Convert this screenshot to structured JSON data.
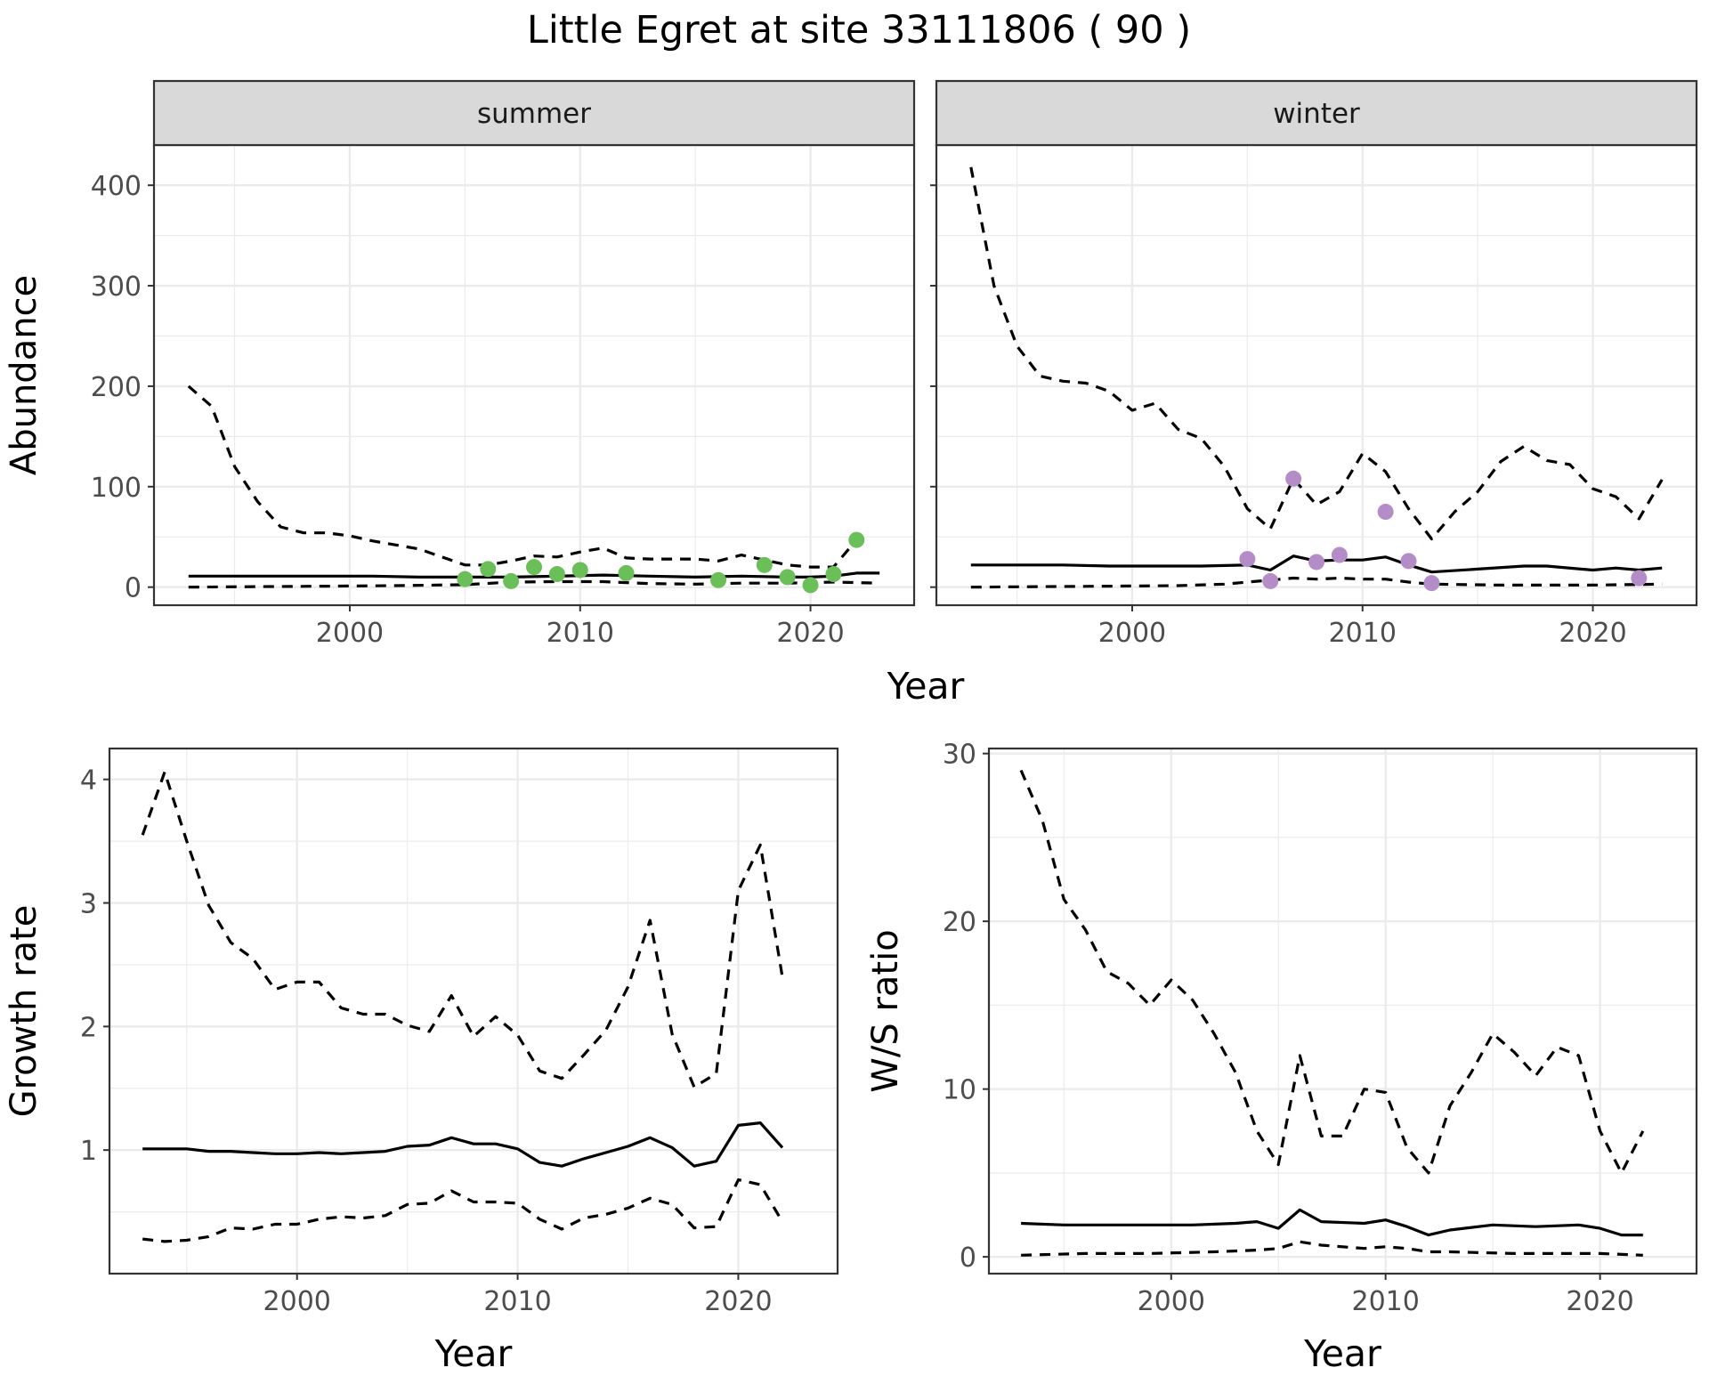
{
  "figure": {
    "title": "Little Egret at site 33111806 ( 90 )"
  },
  "colors": {
    "summer_points": "#6bbf59",
    "winter_points": "#b48cc8",
    "lines": "#000000",
    "grid": "#ebebeb",
    "strip_fill": "#d9d9d9"
  },
  "chart_data": [
    {
      "id": "abundance-summer",
      "type": "line",
      "panel_strip": "summer",
      "xlabel": "Year",
      "ylabel": "Abundance",
      "xlim": [
        1991.5,
        2024.5
      ],
      "ylim": [
        -18,
        440
      ],
      "x_ticks": [
        2000,
        2010,
        2020
      ],
      "y_ticks": [
        0,
        100,
        200,
        300,
        400
      ],
      "grid": true,
      "series": [
        {
          "role": "upper",
          "style": "dashed",
          "x": [
            1993,
            1994,
            1995,
            1996,
            1997,
            1998,
            1999,
            2000,
            2001,
            2002,
            2003,
            2004,
            2005,
            2006,
            2007,
            2008,
            2009,
            2010,
            2011,
            2012,
            2013,
            2014,
            2015,
            2016,
            2017,
            2018,
            2019,
            2020,
            2021,
            2022
          ],
          "y": [
            200,
            180,
            120,
            85,
            60,
            54,
            54,
            51,
            46,
            42,
            38,
            30,
            22,
            22,
            26,
            31,
            30,
            35,
            39,
            29,
            28,
            28,
            28,
            26,
            32,
            27,
            22,
            20,
            20,
            47
          ]
        },
        {
          "role": "mean",
          "style": "solid",
          "x": [
            1993,
            1995,
            1997,
            1999,
            2001,
            2003,
            2005,
            2007,
            2009,
            2011,
            2013,
            2015,
            2017,
            2019,
            2020,
            2021,
            2022,
            2023
          ],
          "y": [
            11,
            11,
            11,
            11,
            11,
            10,
            10,
            10,
            11,
            12,
            11,
            10,
            11,
            10,
            10,
            11,
            14,
            14
          ]
        },
        {
          "role": "lower",
          "style": "dashed",
          "x": [
            1993,
            1996,
            1999,
            2002,
            2005,
            2007,
            2009,
            2011,
            2013,
            2015,
            2017,
            2019,
            2021,
            2023
          ],
          "y": [
            0,
            0.5,
            1,
            1.5,
            2.5,
            5,
            5.5,
            5.5,
            3.5,
            3,
            4,
            4,
            5,
            4
          ]
        },
        {
          "role": "observed",
          "style": "points",
          "x": [
            2005,
            2006,
            2007,
            2008,
            2009,
            2010,
            2012,
            2016,
            2018,
            2019,
            2020,
            2021,
            2022
          ],
          "y": [
            8,
            18,
            6,
            20,
            13,
            17,
            14,
            7,
            22,
            10,
            2,
            13,
            47
          ]
        }
      ]
    },
    {
      "id": "abundance-winter",
      "type": "line",
      "panel_strip": "winter",
      "xlabel": "Year",
      "ylabel": "Abundance",
      "xlim": [
        1991.5,
        2024.5
      ],
      "ylim": [
        -18,
        440
      ],
      "x_ticks": [
        2000,
        2010,
        2020
      ],
      "y_ticks": [
        0,
        100,
        200,
        300,
        400
      ],
      "grid": true,
      "series": [
        {
          "role": "upper",
          "style": "dashed",
          "x": [
            1993,
            1994,
            1995,
            1996,
            1997,
            1998,
            1999,
            2000,
            2001,
            2002,
            2003,
            2004,
            2005,
            2006,
            2007,
            2008,
            2009,
            2010,
            2011,
            2012,
            2013,
            2014,
            2015,
            2016,
            2017,
            2018,
            2019,
            2020,
            2021,
            2022,
            2023
          ],
          "y": [
            418,
            300,
            240,
            210,
            205,
            203,
            195,
            176,
            183,
            157,
            148,
            120,
            78,
            58,
            108,
            82,
            95,
            133,
            115,
            78,
            48,
            75,
            95,
            125,
            140,
            126,
            122,
            98,
            90,
            68,
            107
          ]
        },
        {
          "role": "mean",
          "style": "solid",
          "x": [
            1993,
            1995,
            1997,
            1999,
            2001,
            2003,
            2005,
            2006,
            2007,
            2008,
            2009,
            2010,
            2011,
            2012,
            2013,
            2015,
            2017,
            2018,
            2020,
            2021,
            2022,
            2023
          ],
          "y": [
            22,
            22,
            22,
            21,
            21,
            21,
            22,
            17,
            31,
            26,
            27,
            27,
            30,
            22,
            15,
            18,
            21,
            21,
            17,
            19,
            17,
            19
          ]
        },
        {
          "role": "lower",
          "style": "dashed",
          "x": [
            1993,
            1996,
            1999,
            2002,
            2004,
            2005,
            2006,
            2007,
            2008,
            2009,
            2010,
            2011,
            2012,
            2013,
            2016,
            2020,
            2023
          ],
          "y": [
            0,
            0.5,
            1,
            1.5,
            3,
            5,
            7,
            9,
            8,
            9,
            8,
            8,
            5,
            3,
            2,
            2,
            3
          ]
        },
        {
          "role": "observed",
          "style": "points",
          "x": [
            2005,
            2006,
            2007,
            2008,
            2009,
            2011,
            2012,
            2013,
            2022
          ],
          "y": [
            28,
            6,
            108,
            25,
            32,
            75,
            26,
            4,
            9
          ]
        }
      ]
    },
    {
      "id": "growth-rate",
      "type": "line",
      "xlabel": "Year",
      "ylabel": "Growth rate",
      "xlim": [
        1991.5,
        2024.5
      ],
      "ylim": [
        0,
        4.25
      ],
      "x_ticks": [
        2000,
        2010,
        2020
      ],
      "y_ticks": [
        1,
        2,
        3,
        4
      ],
      "grid": true,
      "series": [
        {
          "role": "upper",
          "style": "dashed",
          "x": [
            1993,
            1994,
            1995,
            1996,
            1997,
            1998,
            1999,
            2000,
            2001,
            2002,
            2003,
            2004,
            2005,
            2006,
            2007,
            2008,
            2009,
            2010,
            2011,
            2012,
            2013,
            2014,
            2015,
            2016,
            2017,
            2018,
            2019,
            2020,
            2021,
            2022
          ],
          "y": [
            3.55,
            4.06,
            3.5,
            2.98,
            2.68,
            2.55,
            2.3,
            2.36,
            2.36,
            2.15,
            2.1,
            2.1,
            2.01,
            1.96,
            2.25,
            1.92,
            2.08,
            1.93,
            1.64,
            1.58,
            1.77,
            1.97,
            2.32,
            2.86,
            1.94,
            1.51,
            1.62,
            3.1,
            3.47,
            2.4
          ]
        },
        {
          "role": "mean",
          "style": "solid",
          "x": [
            1993,
            1994,
            1995,
            1996,
            1997,
            1998,
            1999,
            2000,
            2001,
            2002,
            2003,
            2004,
            2005,
            2006,
            2007,
            2008,
            2009,
            2010,
            2011,
            2012,
            2013,
            2014,
            2015,
            2016,
            2017,
            2018,
            2019,
            2020,
            2021,
            2022
          ],
          "y": [
            1.01,
            1.01,
            1.01,
            0.99,
            0.99,
            0.98,
            0.97,
            0.97,
            0.98,
            0.97,
            0.98,
            0.99,
            1.03,
            1.04,
            1.1,
            1.05,
            1.05,
            1.01,
            0.9,
            0.87,
            0.93,
            0.98,
            1.03,
            1.1,
            1.02,
            0.87,
            0.91,
            1.2,
            1.22,
            1.02
          ]
        },
        {
          "role": "lower",
          "style": "dashed",
          "x": [
            1993,
            1994,
            1995,
            1996,
            1997,
            1998,
            1999,
            2000,
            2001,
            2002,
            2003,
            2004,
            2005,
            2006,
            2007,
            2008,
            2009,
            2010,
            2011,
            2012,
            2013,
            2014,
            2015,
            2016,
            2017,
            2018,
            2019,
            2020,
            2021,
            2022
          ],
          "y": [
            0.28,
            0.26,
            0.27,
            0.3,
            0.37,
            0.36,
            0.4,
            0.4,
            0.44,
            0.46,
            0.45,
            0.47,
            0.56,
            0.57,
            0.67,
            0.58,
            0.58,
            0.57,
            0.44,
            0.36,
            0.45,
            0.48,
            0.53,
            0.61,
            0.56,
            0.37,
            0.38,
            0.76,
            0.72,
            0.42
          ]
        }
      ]
    },
    {
      "id": "ws-ratio",
      "type": "line",
      "xlabel": "Year",
      "ylabel": "W/S ratio",
      "xlim": [
        1991.5,
        2024.5
      ],
      "ylim": [
        -1,
        30.3
      ],
      "x_ticks": [
        2000,
        2010,
        2020
      ],
      "y_ticks": [
        0,
        10,
        20,
        30
      ],
      "grid": true,
      "series": [
        {
          "role": "upper",
          "style": "dashed",
          "x": [
            1993,
            1994,
            1995,
            1996,
            1997,
            1998,
            1999,
            2000,
            2001,
            2002,
            2003,
            2004,
            2005,
            2006,
            2007,
            2008,
            2009,
            2010,
            2011,
            2012,
            2013,
            2014,
            2015,
            2016,
            2017,
            2018,
            2019,
            2020,
            2021,
            2022
          ],
          "y": [
            29,
            26,
            21.3,
            19.5,
            17,
            16.3,
            15,
            16.5,
            15.3,
            13.3,
            11,
            7.5,
            5.5,
            12,
            7.2,
            7.2,
            10,
            9.8,
            6.5,
            5,
            9,
            11,
            13.3,
            12.2,
            10.8,
            12.5,
            12,
            7.5,
            5,
            7.5
          ]
        },
        {
          "role": "mean",
          "style": "solid",
          "x": [
            1993,
            1995,
            1997,
            1999,
            2001,
            2003,
            2004,
            2005,
            2006,
            2007,
            2009,
            2010,
            2011,
            2012,
            2013,
            2015,
            2017,
            2019,
            2020,
            2021,
            2022
          ],
          "y": [
            2,
            1.9,
            1.9,
            1.9,
            1.9,
            2,
            2.1,
            1.7,
            2.8,
            2.1,
            2,
            2.2,
            1.8,
            1.3,
            1.6,
            1.9,
            1.8,
            1.9,
            1.7,
            1.3,
            1.3
          ]
        },
        {
          "role": "lower",
          "style": "dashed",
          "x": [
            1993,
            1996,
            1999,
            2002,
            2004,
            2005,
            2006,
            2007,
            2009,
            2010,
            2011,
            2012,
            2013,
            2016,
            2020,
            2022
          ],
          "y": [
            0.1,
            0.2,
            0.2,
            0.3,
            0.4,
            0.5,
            0.9,
            0.7,
            0.5,
            0.6,
            0.5,
            0.3,
            0.3,
            0.2,
            0.2,
            0.1
          ]
        }
      ]
    }
  ]
}
